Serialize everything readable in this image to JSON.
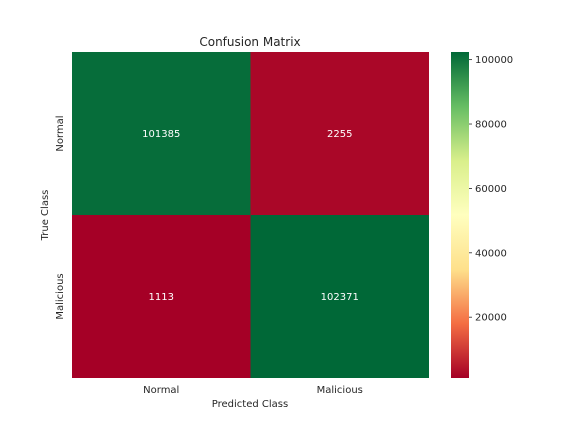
{
  "chart_data": {
    "type": "heatmap",
    "title": "Confusion Matrix",
    "xlabel": "Predicted Class",
    "ylabel": "True Class",
    "x_categories": [
      "Normal",
      "Malicious"
    ],
    "y_categories": [
      "Normal",
      "Malicious"
    ],
    "values": [
      [
        101385,
        2255
      ],
      [
        1113,
        102371
      ]
    ],
    "colorbar": {
      "range": [
        1113,
        102371
      ],
      "ticks": [
        20000,
        40000,
        60000,
        80000,
        100000
      ],
      "colormap": "RdYlGn",
      "colors": [
        "#a50026",
        "#f46d43",
        "#fee08b",
        "#ffffbf",
        "#d9ef8b",
        "#66bd63",
        "#006837"
      ]
    },
    "grid": false,
    "legend": "colorbar-right"
  }
}
